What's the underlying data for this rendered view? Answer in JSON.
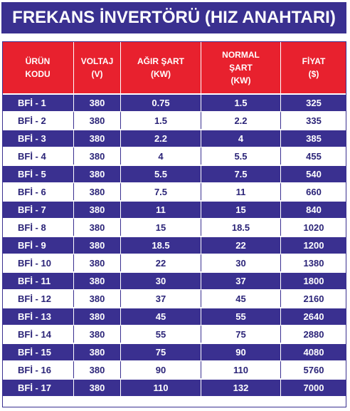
{
  "title": "FREKANS İNVERTÖRÜ (HIZ ANAHTARI)",
  "headers": [
    [
      "ÜRÜN",
      "KODU"
    ],
    [
      "VOLTAJ",
      "(V)"
    ],
    [
      "AĞIR ŞART",
      "(KW)"
    ],
    [
      "NORMAL",
      "ŞART",
      "(KW)"
    ],
    [
      "FİYAT",
      "($)"
    ]
  ],
  "rows": [
    [
      "BFİ - 1",
      "380",
      "0.75",
      "1.5",
      "325"
    ],
    [
      "BFİ - 2",
      "380",
      "1.5",
      "2.2",
      "335"
    ],
    [
      "BFİ - 3",
      "380",
      "2.2",
      "4",
      "385"
    ],
    [
      "BFİ - 4",
      "380",
      "4",
      "5.5",
      "455"
    ],
    [
      "BFİ - 5",
      "380",
      "5.5",
      "7.5",
      "540"
    ],
    [
      "BFİ - 6",
      "380",
      "7.5",
      "11",
      "660"
    ],
    [
      "BFİ - 7",
      "380",
      "11",
      "15",
      "840"
    ],
    [
      "BFİ - 8",
      "380",
      "15",
      "18.5",
      "1020"
    ],
    [
      "BFİ - 9",
      "380",
      "18.5",
      "22",
      "1200"
    ],
    [
      "BFİ - 10",
      "380",
      "22",
      "30",
      "1380"
    ],
    [
      "BFİ - 11",
      "380",
      "30",
      "37",
      "1800"
    ],
    [
      "BFİ - 12",
      "380",
      "37",
      "45",
      "2160"
    ],
    [
      "BFİ - 13",
      "380",
      "45",
      "55",
      "2640"
    ],
    [
      "BFİ - 14",
      "380",
      "55",
      "75",
      "2880"
    ],
    [
      "BFİ - 15",
      "380",
      "75",
      "90",
      "4080"
    ],
    [
      "BFİ - 16",
      "380",
      "90",
      "110",
      "5760"
    ],
    [
      "BFİ - 17",
      "380",
      "110",
      "132",
      "7000"
    ]
  ],
  "colors": {
    "navy": "#3a3090",
    "red": "#e8212e",
    "white": "#ffffff"
  }
}
